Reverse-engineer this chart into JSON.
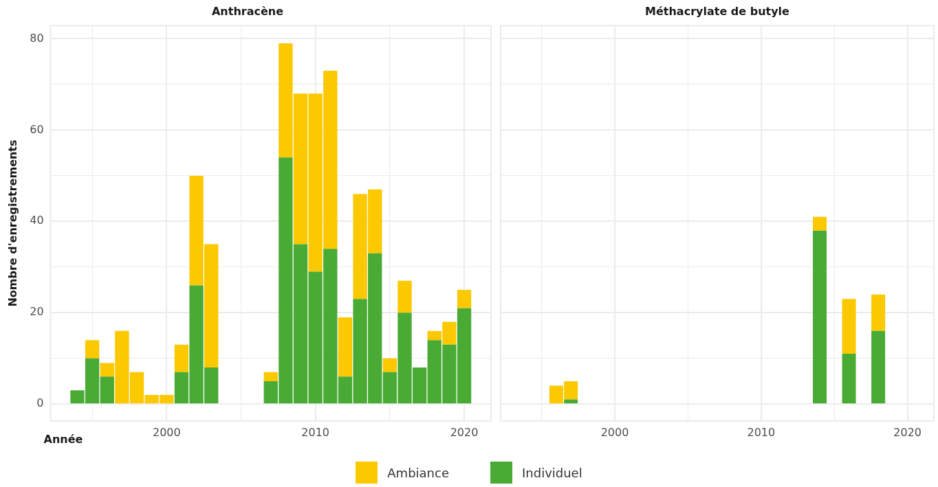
{
  "chart_data": [
    {
      "type": "bar",
      "title": "Anthracène",
      "xlabel": "Année",
      "ylabel": "Nombre d'enregistrements",
      "stacked": true,
      "x": [
        1994,
        1995,
        1996,
        1997,
        1998,
        1999,
        2000,
        2001,
        2002,
        2003,
        2007,
        2008,
        2009,
        2010,
        2011,
        2012,
        2013,
        2014,
        2015,
        2016,
        2017,
        2018,
        2019,
        2020
      ],
      "series": [
        {
          "name": "Individuel",
          "color": "#4aab34",
          "values": [
            3,
            10,
            6,
            0,
            0,
            0,
            0,
            7,
            26,
            8,
            5,
            54,
            35,
            29,
            34,
            6,
            23,
            33,
            7,
            20,
            8,
            14,
            13,
            21
          ]
        },
        {
          "name": "Ambiance",
          "color": "#fcc800",
          "values": [
            0,
            4,
            3,
            16,
            7,
            2,
            2,
            6,
            24,
            27,
            2,
            25,
            33,
            39,
            39,
            13,
            23,
            14,
            3,
            7,
            0,
            2,
            5,
            4
          ]
        }
      ],
      "xlim": [
        1992.2,
        2021.8
      ],
      "xticks": [
        {
          "value": 1995,
          "label": null
        },
        2000,
        {
          "value": 2005,
          "label": null
        },
        2010,
        {
          "value": 2015,
          "label": null
        },
        2020
      ],
      "ylim": [
        -3.7,
        82.9
      ],
      "yticks": [
        0,
        {
          "value": 10,
          "label": null
        },
        20,
        {
          "value": 30,
          "label": null
        },
        40,
        {
          "value": 50,
          "label": null
        },
        60,
        {
          "value": 70,
          "label": null
        },
        80
      ],
      "grid": true,
      "legend": "bottom"
    },
    {
      "type": "bar",
      "title": "Méthacrylate de butyle",
      "stacked": true,
      "x": [
        1996,
        1997,
        2014,
        2016,
        2018
      ],
      "series": [
        {
          "color": "#4aab34",
          "values": [
            0,
            1,
            38,
            11,
            16
          ]
        },
        {
          "color": "#fcc800",
          "values": [
            4,
            4,
            3,
            12,
            8
          ]
        }
      ],
      "xlim": [
        1992.2,
        2021.8
      ],
      "xticks": [
        {
          "value": 1995,
          "label": null
        },
        2000,
        {
          "value": 2005,
          "label": null
        },
        2010,
        {
          "value": 2015,
          "label": null
        },
        2020
      ],
      "ylim": [
        -3.7,
        82.9
      ],
      "yticks": [
        0,
        {
          "value": 10,
          "label": null
        },
        20,
        {
          "value": 30,
          "label": null
        },
        40,
        {
          "value": 50,
          "label": null
        },
        60,
        {
          "value": 70,
          "label": null
        },
        80
      ],
      "grid": true,
      "tick_labels": "x"
    }
  ]
}
